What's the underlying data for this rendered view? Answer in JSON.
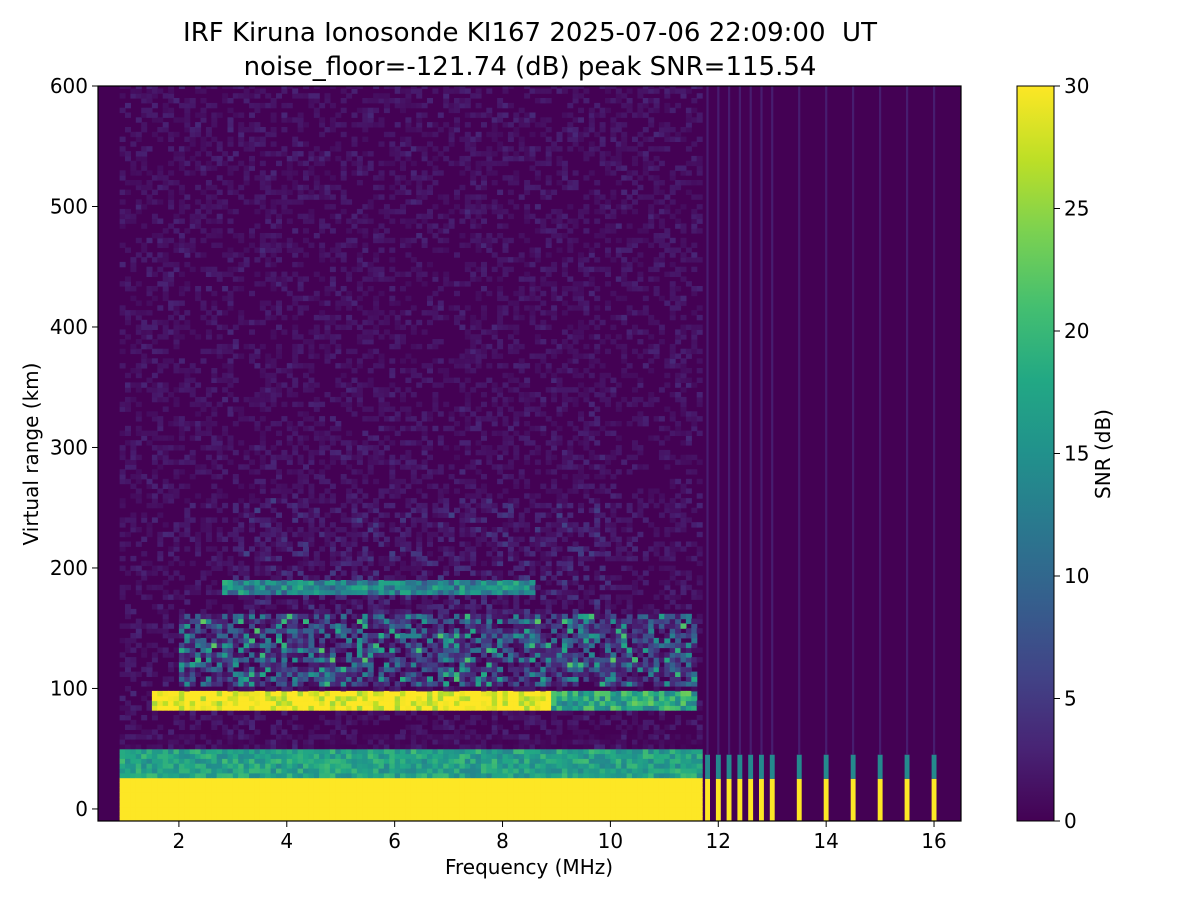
{
  "chart_data": {
    "type": "heatmap",
    "title": "IRF Kiruna Ionosonde KI167 2025-07-06 22:09:00  UT",
    "subtitle": "noise_floor=-121.74 (dB) peak SNR=115.54",
    "xlabel": "Frequency (MHz)",
    "ylabel": "Virtual range (km)",
    "colorbar_label": "SNR (dB)",
    "colormap": "viridis",
    "xlim": [
      0.5,
      16.5
    ],
    "ylim": [
      -10,
      600
    ],
    "clim": [
      0,
      30
    ],
    "xticks": [
      2,
      4,
      6,
      8,
      10,
      12,
      14,
      16
    ],
    "yticks": [
      0,
      100,
      200,
      300,
      400,
      500,
      600
    ],
    "cticks": [
      0,
      5,
      10,
      15,
      20,
      25,
      30
    ],
    "data_range_x": [
      0.9,
      16.5
    ],
    "continuous_sweep_end_mhz": 11.6,
    "discrete_frequencies_mhz": [
      11.8,
      12.0,
      12.2,
      12.4,
      12.6,
      12.8,
      13.0,
      13.5,
      14.0,
      14.5,
      15.0,
      15.5,
      16.0
    ],
    "features": [
      {
        "name": "ground echo",
        "range_km": [
          -10,
          25
        ],
        "snr_db": 30
      },
      {
        "name": "echo fringe",
        "range_km": [
          25,
          48
        ],
        "snr_db": 18
      },
      {
        "name": "E-layer trace",
        "freq_mhz": [
          1.5,
          8.9
        ],
        "range_km": [
          84,
          96
        ],
        "snr_db": 30
      },
      {
        "name": "E-layer trace",
        "freq_mhz": [
          8.9,
          11.6
        ],
        "range_km": [
          84,
          96
        ],
        "snr_db": 18
      },
      {
        "name": "diffuse echoes",
        "freq_mhz": [
          2.0,
          11.6
        ],
        "range_km": [
          100,
          160
        ],
        "snr_db": 15
      },
      {
        "name": "upper trace",
        "freq_mhz": [
          2.8,
          8.6
        ],
        "range_km": [
          177,
          188
        ],
        "snr_db": 16
      }
    ]
  }
}
